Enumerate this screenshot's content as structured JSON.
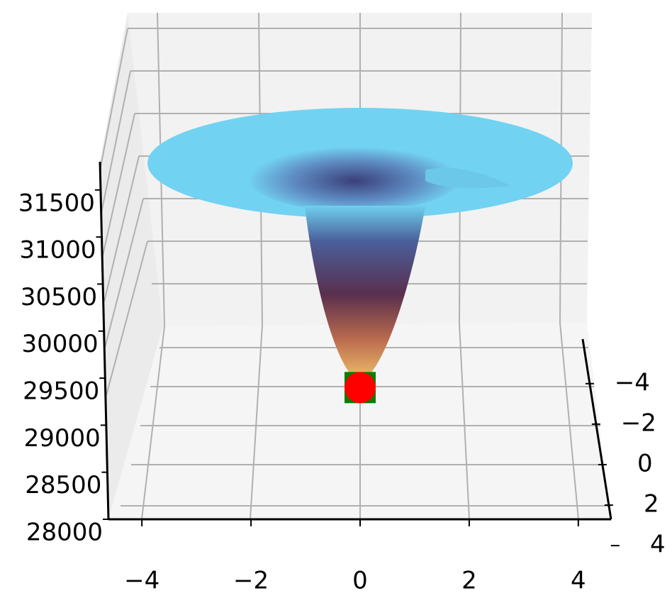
{
  "chart_data": {
    "type": "surface3d",
    "xticks": [
      {
        "value": -4,
        "label": "−4"
      },
      {
        "value": -2,
        "label": "−2"
      },
      0,
      2,
      4
    ],
    "xlim": [
      -4.6,
      4.6
    ],
    "yticks": [
      {
        "value": -4,
        "label": "−4"
      },
      {
        "value": -2,
        "label": "−2"
      },
      0,
      2,
      4
    ],
    "ylim": [
      -6.2,
      2.7
    ],
    "zticks": [
      28000,
      28500,
      29000,
      29500,
      30000,
      30500,
      31000,
      31500
    ],
    "zlim": [
      28000,
      31800
    ],
    "points": {
      "x": [
        0
      ],
      "y": [
        0
      ],
      "z": [
        29400
      ],
      "color": "#ff0000",
      "edge_color": "#008000"
    },
    "grid": true
  }
}
